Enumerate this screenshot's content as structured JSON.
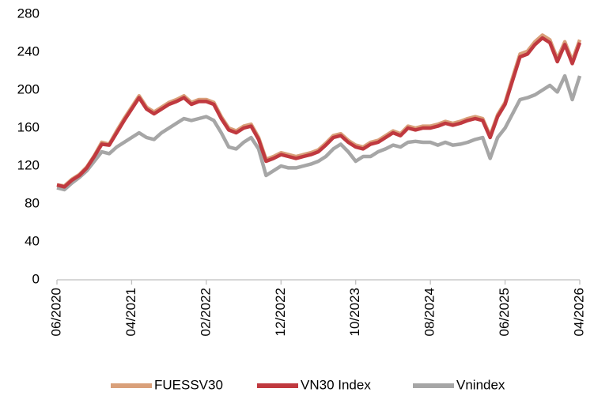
{
  "chart_data": {
    "type": "line",
    "categories": [
      "06/2020",
      null,
      null,
      null,
      null,
      null,
      null,
      null,
      null,
      null,
      "04/2021",
      null,
      null,
      null,
      null,
      null,
      null,
      null,
      null,
      null,
      "02/2022",
      null,
      null,
      null,
      null,
      null,
      null,
      null,
      null,
      null,
      "12/2022",
      null,
      null,
      null,
      null,
      null,
      null,
      null,
      null,
      null,
      "10/2023",
      null,
      null,
      null,
      null,
      null,
      null,
      null,
      null,
      null,
      "08/2024",
      null,
      null,
      null,
      null,
      null,
      null,
      null,
      null,
      null,
      "06/2025",
      null,
      null,
      null,
      null,
      null,
      null,
      null,
      null,
      null,
      "04/2026"
    ],
    "ylim": [
      0,
      280
    ],
    "yticks": [
      0,
      40,
      80,
      120,
      160,
      200,
      240,
      280
    ],
    "grid": false,
    "series": [
      {
        "name": "Vnindex",
        "color": "#a6a6a6",
        "values": [
          97,
          95,
          102,
          108,
          115,
          125,
          135,
          133,
          140,
          145,
          150,
          155,
          150,
          148,
          155,
          160,
          165,
          170,
          168,
          170,
          172,
          168,
          155,
          140,
          138,
          145,
          150,
          138,
          110,
          115,
          120,
          118,
          118,
          120,
          122,
          125,
          130,
          138,
          143,
          135,
          125,
          130,
          130,
          135,
          138,
          142,
          140,
          145,
          146,
          145,
          145,
          142,
          145,
          142,
          143,
          145,
          148,
          150,
          128,
          150,
          160,
          175,
          190,
          192,
          195,
          200,
          205,
          198,
          215,
          190,
          215
        ]
      },
      {
        "name": "FUESSV30",
        "color": "#d9a07a",
        "values": [
          100,
          99,
          106,
          111,
          119,
          131,
          145,
          143,
          157,
          170,
          182,
          194,
          182,
          177,
          182,
          187,
          190,
          194,
          187,
          190,
          190,
          187,
          172,
          160,
          157,
          162,
          164,
          150,
          127,
          130,
          134,
          132,
          130,
          132,
          134,
          137,
          144,
          152,
          154,
          147,
          142,
          140,
          145,
          147,
          152,
          157,
          154,
          162,
          160,
          162,
          162,
          164,
          167,
          165,
          167,
          170,
          172,
          170,
          152,
          174,
          187,
          213,
          238,
          241,
          251,
          258,
          253,
          233,
          251,
          231,
          253
        ]
      },
      {
        "name": "VN30 Index",
        "color": "#c0393f",
        "values": [
          100,
          98,
          105,
          110,
          118,
          130,
          143,
          142,
          155,
          168,
          180,
          192,
          180,
          175,
          180,
          185,
          188,
          192,
          185,
          188,
          188,
          185,
          170,
          158,
          155,
          160,
          162,
          148,
          125,
          128,
          132,
          130,
          128,
          130,
          132,
          135,
          142,
          150,
          152,
          145,
          140,
          138,
          143,
          145,
          150,
          155,
          152,
          160,
          158,
          160,
          160,
          162,
          165,
          163,
          165,
          168,
          170,
          168,
          150,
          172,
          185,
          210,
          235,
          238,
          248,
          255,
          250,
          230,
          248,
          228,
          250
        ]
      }
    ]
  }
}
